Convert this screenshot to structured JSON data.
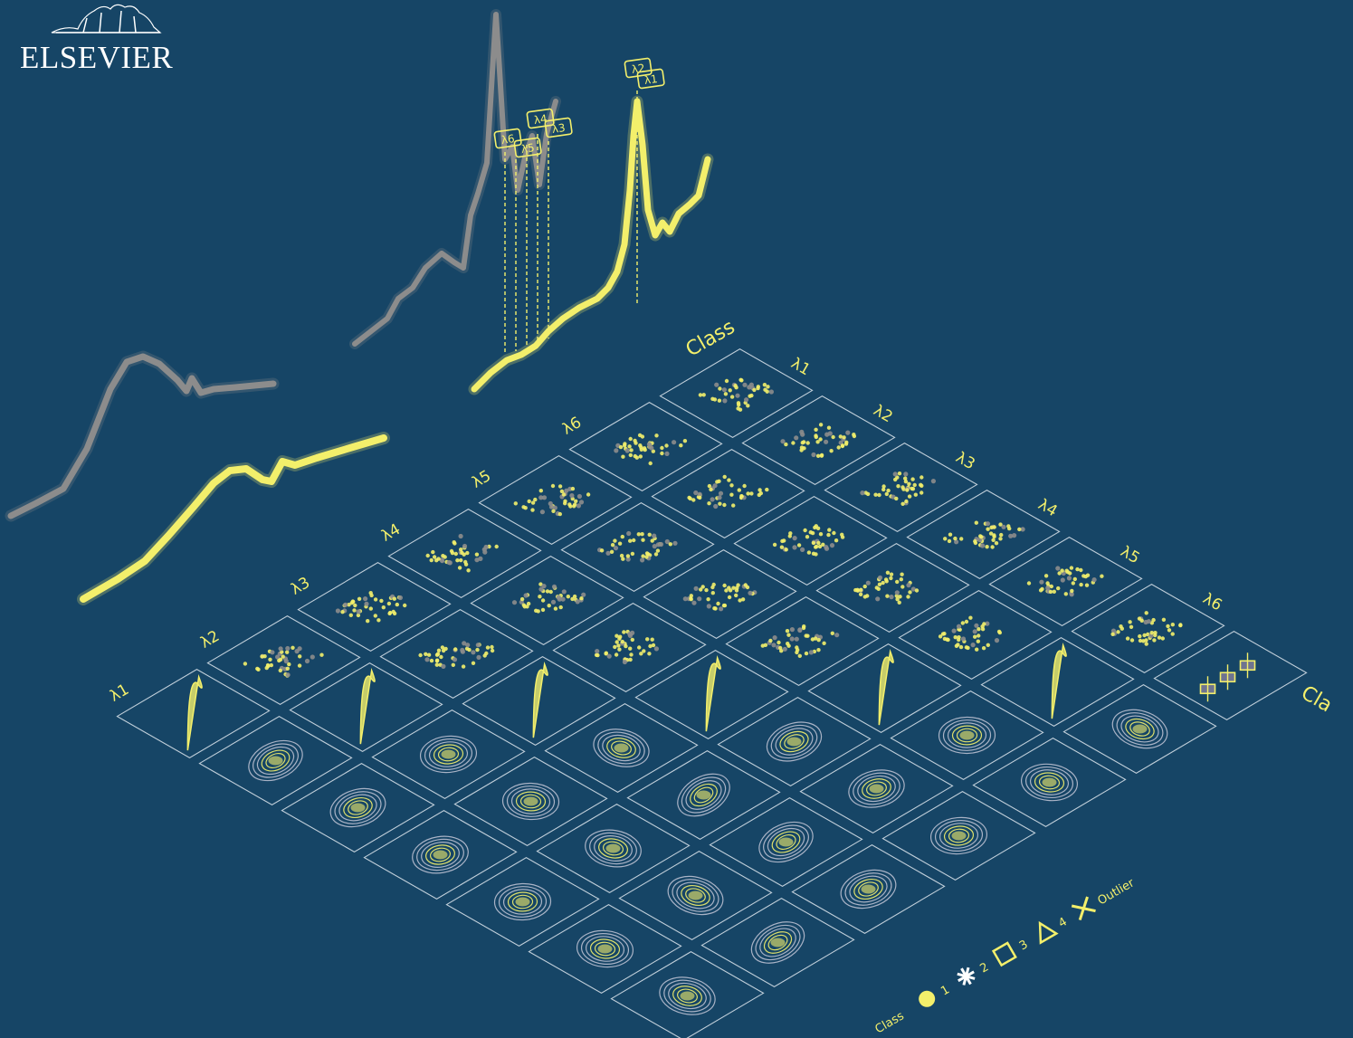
{
  "publisher": {
    "name": "ELSEVIER",
    "mark_icon": "elsevier-tree-icon"
  },
  "spectra_labels": [
    "λ6",
    "λ5",
    "λ4",
    "λ3",
    "λ2",
    "λ1"
  ],
  "matrix": {
    "header": "Class",
    "row_labels": [
      "λ1",
      "λ2",
      "λ3",
      "λ4",
      "λ5",
      "λ6"
    ],
    "col_labels": [
      "λ1",
      "λ2",
      "λ3",
      "λ4",
      "λ5",
      "λ6"
    ],
    "corner_label": "Cla"
  },
  "legend": {
    "title": "Class",
    "items": [
      {
        "label": "1",
        "icon": "filled-circle-icon"
      },
      {
        "label": "2",
        "icon": "asterisk-icon"
      },
      {
        "label": "3",
        "icon": "square-icon"
      },
      {
        "label": "4",
        "icon": "triangle-icon"
      },
      {
        "label": "Outlier",
        "icon": "cross-icon"
      }
    ]
  },
  "colors": {
    "background": "#164566",
    "yellow": "#f3ef6b",
    "grey": "#8c8c8c",
    "frame": "#dfe7ee"
  }
}
